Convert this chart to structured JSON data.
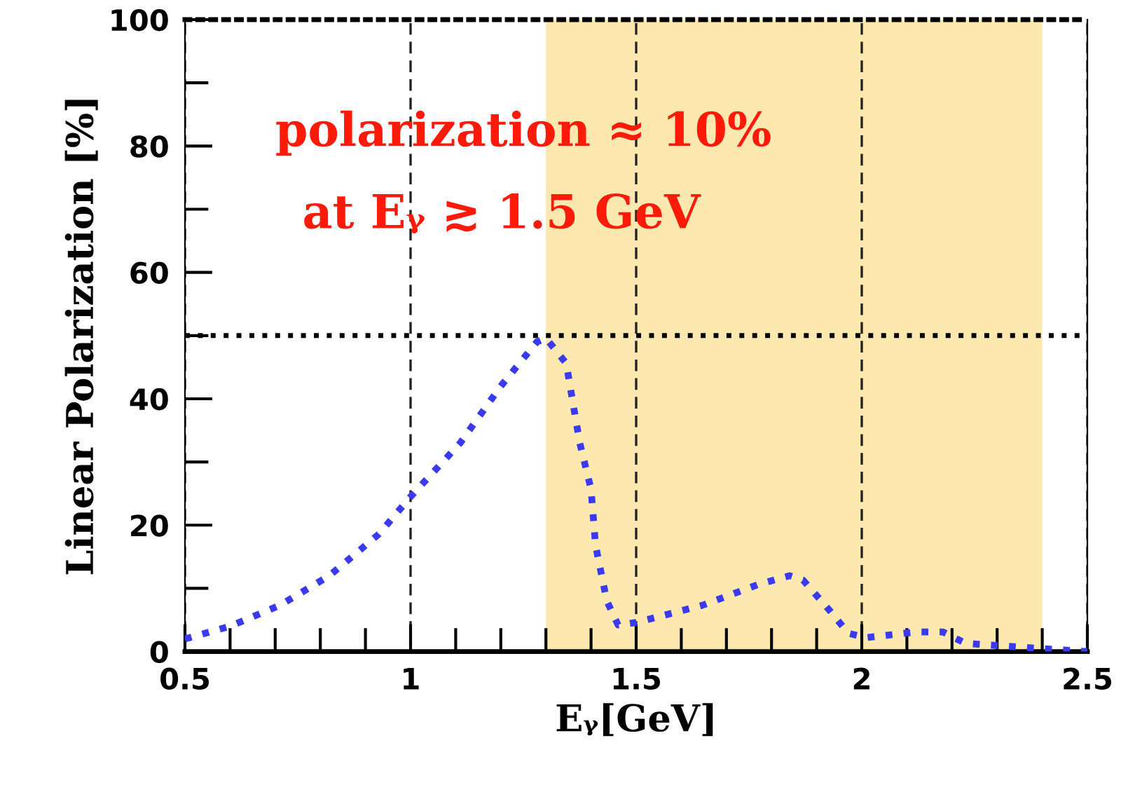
{
  "chart_data": {
    "type": "line",
    "xlabel": "Eᵧ[GeV]",
    "ylabel": "Linear Polarization [%]",
    "annotations": [
      "polarization ≈ 10%",
      "at Eᵧ ≳ 1.5 GeV"
    ],
    "series": [
      {
        "color": "#3a3af0",
        "x": [
          0.5,
          0.6,
          0.71,
          0.82,
          0.93,
          1.0,
          1.11,
          1.2,
          1.28,
          1.3,
          1.345,
          1.375,
          1.4,
          1.41,
          1.435,
          1.46,
          1.5,
          1.646,
          1.77,
          1.84,
          1.87,
          1.93,
          1.97,
          2.01,
          2.12,
          2.18,
          2.23,
          2.37,
          2.5
        ],
        "values": [
          2.0,
          4.0,
          7.3,
          12,
          18.6,
          24.5,
          33,
          42,
          49,
          49.6,
          45.6,
          33,
          25.7,
          16.8,
          8,
          4.2,
          4.6,
          7.3,
          10.6,
          12,
          11.3,
          6.4,
          2.9,
          2.2,
          3.1,
          3.1,
          1.3,
          0.6,
          0
        ]
      }
    ],
    "xlim": [
      0.5,
      2.5
    ],
    "xticks": [
      0.5,
      1,
      1.5,
      2,
      2.5
    ],
    "ylim": [
      0,
      100
    ],
    "yticks": [
      0,
      20,
      40,
      60,
      80,
      100
    ],
    "grid": "x",
    "line_style": "dotted",
    "marker": "none",
    "ref_lines": [
      {
        "axis": "y",
        "value": 50,
        "color": "#000000",
        "line_style": "dotted"
      }
    ],
    "bands": [
      {
        "axis": "x",
        "from": 1.3,
        "to": 2.4,
        "color": "#fde9b0"
      }
    ]
  }
}
